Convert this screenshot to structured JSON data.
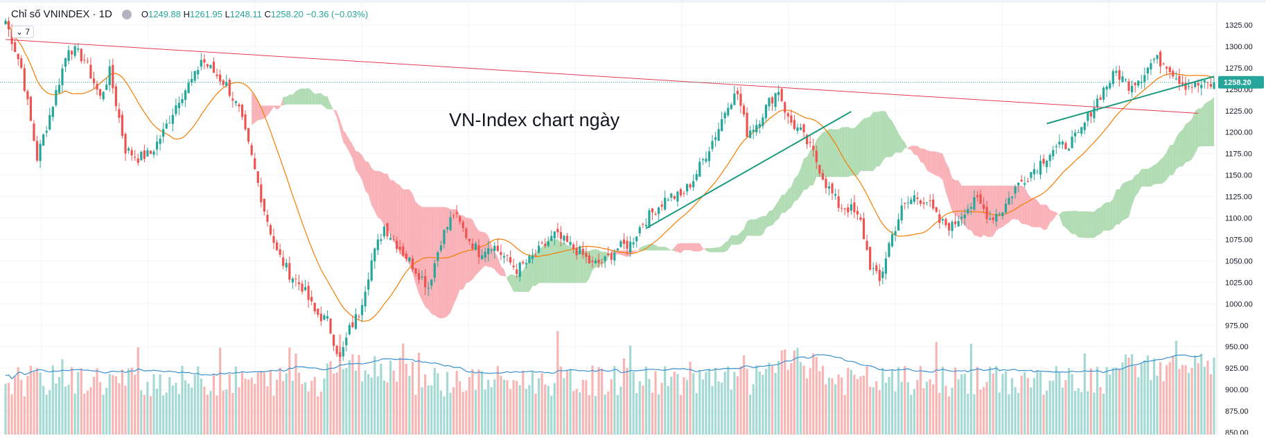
{
  "legend": {
    "symbol": "Chỉ số VNINDEX · 1D",
    "open_label": "O",
    "open": "1249.88",
    "high_label": "H",
    "high": "1261.95",
    "low_label": "L",
    "low": "1248.11",
    "close_label": "C",
    "close": "1258.20",
    "change": "−0.36 (−0.03%)"
  },
  "indicator_toggle": "7",
  "annotation": "VN-Index chart ngày",
  "last_price_label": "1258.20",
  "colors": {
    "up": "#26a69a",
    "down": "#ef5350",
    "cloud_bull": "#a5d6a7",
    "cloud_bear": "#f8a5ab",
    "trend": "#e53950",
    "ma": "#f57c00",
    "volume_ma": "#3a8fcf"
  },
  "chart_data": {
    "type": "candlestick",
    "y_ticks": [
      "1325.00",
      "1300.00",
      "1275.00",
      "1250.00",
      "1225.00",
      "1200.00",
      "1175.00",
      "1150.00",
      "1125.00",
      "1100.00",
      "1075.00",
      "1050.00",
      "1025.00",
      "1000.00",
      "975.00",
      "950.00",
      "925.00",
      "900.00",
      "875.00",
      "850.00"
    ],
    "ylim": [
      850,
      1325
    ],
    "last_price": 1258.2,
    "grid": true,
    "close_anchors": [
      [
        0,
        1330
      ],
      [
        5,
        1275
      ],
      [
        10,
        1170
      ],
      [
        14,
        1220
      ],
      [
        20,
        1300
      ],
      [
        25,
        1285
      ],
      [
        30,
        1240
      ],
      [
        33,
        1270
      ],
      [
        38,
        1180
      ],
      [
        42,
        1170
      ],
      [
        46,
        1175
      ],
      [
        50,
        1200
      ],
      [
        55,
        1240
      ],
      [
        60,
        1265
      ],
      [
        62,
        1285
      ],
      [
        66,
        1270
      ],
      [
        70,
        1255
      ],
      [
        74,
        1225
      ],
      [
        78,
        1170
      ],
      [
        82,
        1110
      ],
      [
        86,
        1060
      ],
      [
        90,
        1035
      ],
      [
        94,
        1020
      ],
      [
        98,
        990
      ],
      [
        102,
        980
      ],
      [
        106,
        935
      ],
      [
        109,
        970
      ],
      [
        112,
        990
      ],
      [
        116,
        1050
      ],
      [
        120,
        1090
      ],
      [
        125,
        1065
      ],
      [
        130,
        1040
      ],
      [
        134,
        1020
      ],
      [
        138,
        1075
      ],
      [
        142,
        1105
      ],
      [
        146,
        1080
      ],
      [
        150,
        1060
      ],
      [
        154,
        1070
      ],
      [
        158,
        1055
      ],
      [
        162,
        1040
      ],
      [
        166,
        1050
      ],
      [
        170,
        1065
      ],
      [
        174,
        1080
      ],
      [
        178,
        1070
      ],
      [
        182,
        1060
      ],
      [
        186,
        1045
      ],
      [
        190,
        1050
      ],
      [
        194,
        1065
      ],
      [
        198,
        1070
      ],
      [
        202,
        1095
      ],
      [
        206,
        1110
      ],
      [
        210,
        1125
      ],
      [
        214,
        1125
      ],
      [
        218,
        1145
      ],
      [
        222,
        1175
      ],
      [
        226,
        1205
      ],
      [
        229,
        1235
      ],
      [
        232,
        1245
      ],
      [
        235,
        1200
      ],
      [
        238,
        1210
      ],
      [
        242,
        1235
      ],
      [
        245,
        1250
      ],
      [
        248,
        1215
      ],
      [
        252,
        1200
      ],
      [
        256,
        1175
      ],
      [
        260,
        1140
      ],
      [
        264,
        1115
      ],
      [
        268,
        1110
      ],
      [
        271,
        1095
      ],
      [
        274,
        1045
      ],
      [
        277,
        1025
      ],
      [
        280,
        1070
      ],
      [
        284,
        1110
      ],
      [
        288,
        1125
      ],
      [
        292,
        1120
      ],
      [
        296,
        1095
      ],
      [
        300,
        1090
      ],
      [
        304,
        1110
      ],
      [
        308,
        1120
      ],
      [
        312,
        1100
      ],
      [
        316,
        1110
      ],
      [
        320,
        1135
      ],
      [
        324,
        1150
      ],
      [
        328,
        1165
      ],
      [
        332,
        1180
      ],
      [
        336,
        1185
      ],
      [
        340,
        1195
      ],
      [
        344,
        1225
      ],
      [
        348,
        1250
      ],
      [
        352,
        1270
      ],
      [
        356,
        1255
      ],
      [
        360,
        1265
      ],
      [
        364,
        1285
      ],
      [
        368,
        1280
      ],
      [
        371,
        1265
      ],
      [
        374,
        1255
      ]
    ],
    "trendlines": [
      {
        "name": "resistance",
        "p1": [
          0,
          1308
        ],
        "p2": [
          378,
          1222
        ]
      },
      {
        "name": "uptrend-1",
        "p1": [
          203,
          1088
        ],
        "p2": [
          268,
          1224
        ]
      },
      {
        "name": "uptrend-2",
        "p1": [
          330,
          1210
        ],
        "p2": [
          383,
          1265
        ]
      }
    ],
    "volume_series": "bars (relative)"
  }
}
